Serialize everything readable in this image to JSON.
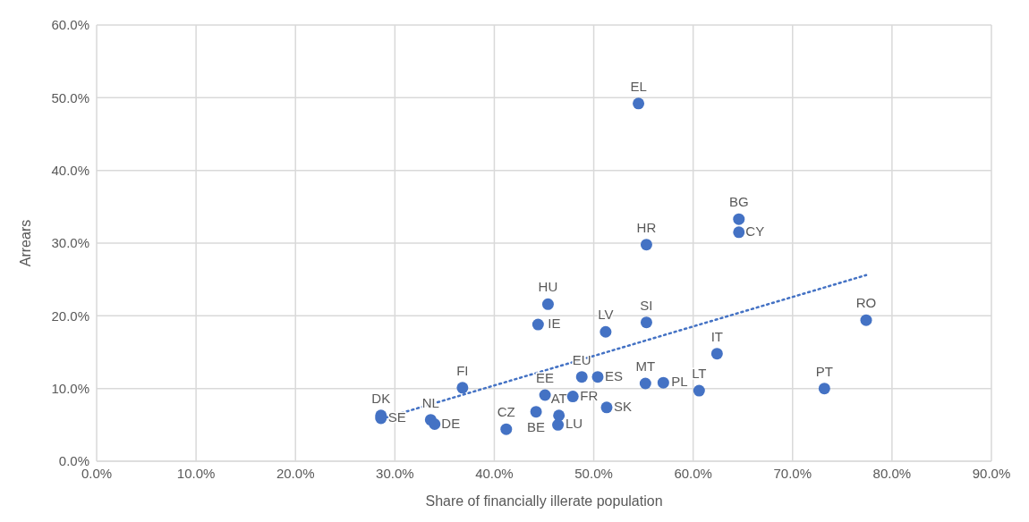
{
  "chart_data": {
    "type": "scatter",
    "xlabel": "Share of financially illerate population",
    "ylabel": "Arrears",
    "xlim": [
      0,
      90
    ],
    "ylim": [
      0,
      60
    ],
    "xticks": [
      {
        "value": 0,
        "label": "0.0%"
      },
      {
        "value": 10,
        "label": "10.0%"
      },
      {
        "value": 20,
        "label": "20.0%"
      },
      {
        "value": 30,
        "label": "30.0%"
      },
      {
        "value": 40,
        "label": "40.0%"
      },
      {
        "value": 50,
        "label": "50.0%"
      },
      {
        "value": 60,
        "label": "60.0%"
      },
      {
        "value": 70,
        "label": "70.0%"
      },
      {
        "value": 80,
        "label": "80.0%"
      },
      {
        "value": 90,
        "label": "90.0%"
      }
    ],
    "yticks": [
      {
        "value": 0,
        "label": "0.0%"
      },
      {
        "value": 10,
        "label": "10.0%"
      },
      {
        "value": 20,
        "label": "20.0%"
      },
      {
        "value": 30,
        "label": "30.0%"
      },
      {
        "value": 40,
        "label": "40.0%"
      },
      {
        "value": 50,
        "label": "50.0%"
      },
      {
        "value": 60,
        "label": "60.0%"
      }
    ],
    "grid": true,
    "legend": false,
    "marker": "circle",
    "series": [
      {
        "type": "scatter",
        "color": "#4472c4",
        "x": [
          28.6,
          28.6,
          33.6,
          34.0,
          36.8,
          41.2,
          44.2,
          45.1,
          46.4,
          46.5,
          47.9,
          48.8,
          50.4,
          51.3,
          44.4,
          45.4,
          51.2,
          55.3,
          55.2,
          57.0,
          60.6,
          62.4,
          73.2,
          77.4,
          55.3,
          64.6,
          64.6,
          54.5
        ],
        "values": [
          6.3,
          5.9,
          5.7,
          5.1,
          10.1,
          4.4,
          6.8,
          9.1,
          5.0,
          6.3,
          8.9,
          11.6,
          11.6,
          7.4,
          18.8,
          21.6,
          17.8,
          19.1,
          10.7,
          10.8,
          9.7,
          14.8,
          10.0,
          19.4,
          29.8,
          33.3,
          31.5,
          49.2
        ],
        "value_labels": [
          "DK",
          "SE",
          "NL",
          "DE",
          "FI",
          "CZ",
          "BE",
          "EE",
          "LU",
          "AT",
          "FR",
          "EU",
          "ES",
          "SK",
          "IE",
          "HU",
          "LV",
          "SI",
          "MT",
          "PL",
          "LT",
          "IT",
          "PT",
          "RO",
          "HR",
          "BG",
          "CY",
          "EL"
        ]
      },
      {
        "type": "line",
        "color": "#4472c4",
        "x": [
          28.6,
          77.4
        ],
        "values": [
          5.8,
          25.6
        ],
        "line_style": "dotted",
        "marker": "none"
      }
    ]
  }
}
